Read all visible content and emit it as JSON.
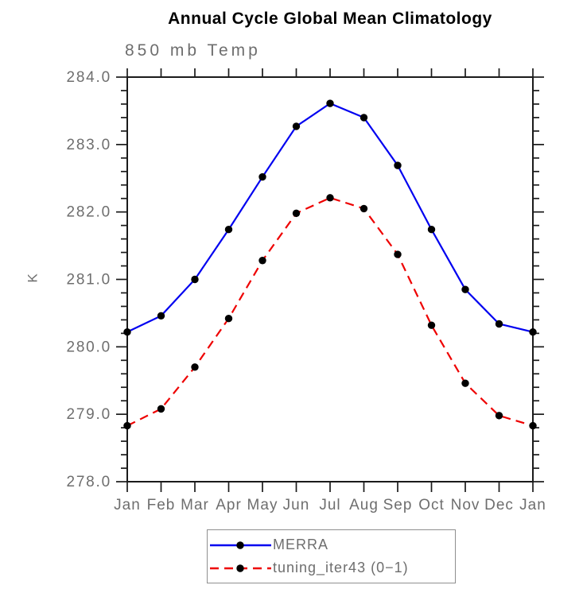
{
  "header": {
    "title": "Annual Cycle Global Mean Climatology",
    "subtitle": "850 mb Temp"
  },
  "chart_data": {
    "type": "line",
    "title": "Annual Cycle Global Mean Climatology",
    "subtitle": "850 mb Temp",
    "xlabel": "",
    "ylabel": "K",
    "categories": [
      "Jan",
      "Feb",
      "Mar",
      "Apr",
      "May",
      "Jun",
      "Jul",
      "Aug",
      "Sep",
      "Oct",
      "Nov",
      "Dec",
      "Jan"
    ],
    "ylim": [
      278.0,
      284.0
    ],
    "y_major_ticks": [
      278.0,
      279.0,
      280.0,
      281.0,
      282.0,
      283.0,
      284.0
    ],
    "y_tick_labels": [
      "278.0",
      "279.0",
      "280.0",
      "281.0",
      "282.0",
      "283.0",
      "284.0"
    ],
    "y_minor_step": 0.2,
    "grid": false,
    "legend_position": "bottom-center",
    "axis_color": "#1a1a1a",
    "text_color": "#6e6e6e",
    "series": [
      {
        "name": "MERRA",
        "color": "#0000f0",
        "style": "solid",
        "marker": "circle",
        "marker_color": "#000000",
        "values": [
          280.22,
          280.46,
          281.0,
          281.74,
          282.52,
          283.27,
          283.61,
          283.4,
          282.69,
          281.74,
          280.85,
          280.34,
          280.22
        ]
      },
      {
        "name": "tuning_iter43 (0−1)",
        "color": "#ee0000",
        "style": "dashed",
        "marker": "circle",
        "marker_color": "#000000",
        "values": [
          278.83,
          279.08,
          279.7,
          280.42,
          281.28,
          281.98,
          282.21,
          282.05,
          281.37,
          280.32,
          279.46,
          278.98,
          278.83
        ]
      }
    ]
  }
}
